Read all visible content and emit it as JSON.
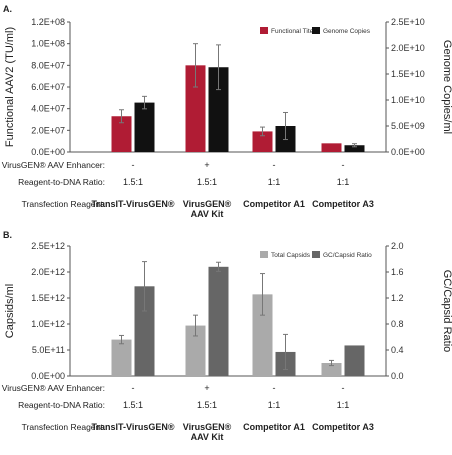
{
  "chart_data": [
    {
      "type": "bar",
      "panel_label": "A.",
      "categories": [
        "TransIT-VirusGEN®",
        "VirusGEN® AAV Kit",
        "Competitor A1",
        "Competitor A3"
      ],
      "series": [
        {
          "name": "Functional Titer",
          "axis": "left",
          "color": "#b01c34",
          "values": [
            33000000,
            80000000,
            19000000,
            8000000
          ],
          "errors": [
            6000000,
            20000000,
            4000000,
            0
          ]
        },
        {
          "name": "Genome Copies",
          "axis": "right",
          "color": "#111111",
          "values": [
            9500000000,
            16300000000,
            5000000000,
            1300000000
          ],
          "errors": [
            1200000000,
            4300000000,
            2600000000,
            300000000
          ]
        }
      ],
      "ylabel": "Functional AAV2 (TU/ml)",
      "ylim": [
        0,
        120000000
      ],
      "yticks": [
        "0.0E+00",
        "2.0E+07",
        "4.0E+07",
        "6.0E+07",
        "8.0E+07",
        "1.0E+08",
        "1.2E+08"
      ],
      "y2label": "Genome Copies/ml",
      "y2lim": [
        0,
        25000000000
      ],
      "y2ticks": [
        "0.0E+00",
        "5.0E+09",
        "1.0E+10",
        "1.5E+10",
        "2.0E+10",
        "2.5E+10"
      ],
      "legend": "top-right",
      "grid": false,
      "table": {
        "row_labels": [
          "VirusGEN® AAV Enhancer:",
          "Reagent-to-DNA Ratio:",
          "Transfection Reagent:"
        ],
        "enhancer": [
          "-",
          "+",
          "-",
          "-"
        ],
        "ratio": [
          "1.5:1",
          "1.5:1",
          "1:1",
          "1:1"
        ],
        "reagent": [
          [
            "TransIT-VirusGEN®"
          ],
          [
            "VirusGEN®",
            "AAV Kit"
          ],
          [
            "Competitor A1"
          ],
          [
            "Competitor A3"
          ]
        ]
      }
    },
    {
      "type": "bar",
      "panel_label": "B.",
      "categories": [
        "TransIT-VirusGEN®",
        "VirusGEN® AAV Kit",
        "Competitor A1",
        "Competitor A3"
      ],
      "series": [
        {
          "name": "Total Capsids",
          "axis": "left",
          "color": "#aaaaaa",
          "values": [
            700000000000,
            970000000000,
            1570000000000,
            250000000000
          ],
          "errors": [
            80000000000,
            200000000000,
            400000000000,
            50000000000
          ]
        },
        {
          "name": "GC/Capsid Ratio",
          "axis": "right",
          "color": "#666666",
          "values": [
            1.38,
            1.68,
            0.37,
            0.47
          ],
          "errors": [
            0.38,
            0.07,
            0.27,
            0.0
          ]
        }
      ],
      "ylabel": "Capsids/ml",
      "ylim": [
        0,
        2500000000000
      ],
      "yticks": [
        "0.0E+00",
        "5.0E+11",
        "1.0E+12",
        "1.5E+12",
        "2.0E+12",
        "2.5E+12"
      ],
      "y2label": "GC/Capsid Ratio",
      "y2lim": [
        0,
        2.0
      ],
      "y2ticks": [
        "0.0",
        "0.4",
        "0.8",
        "1.2",
        "1.6",
        "2.0"
      ],
      "legend": "top-right",
      "grid": false,
      "table": {
        "row_labels": [
          "VirusGEN® AAV Enhancer:",
          "Reagent-to-DNA Ratio:",
          "Transfection Reagent:"
        ],
        "enhancer": [
          "-",
          "+",
          "-",
          "-"
        ],
        "ratio": [
          "1.5:1",
          "1.5:1",
          "1:1",
          "1:1"
        ],
        "reagent": [
          [
            "TransIT-VirusGEN®"
          ],
          [
            "VirusGEN®",
            "AAV Kit"
          ],
          [
            "Competitor A1"
          ],
          [
            "Competitor A3"
          ]
        ]
      }
    }
  ]
}
